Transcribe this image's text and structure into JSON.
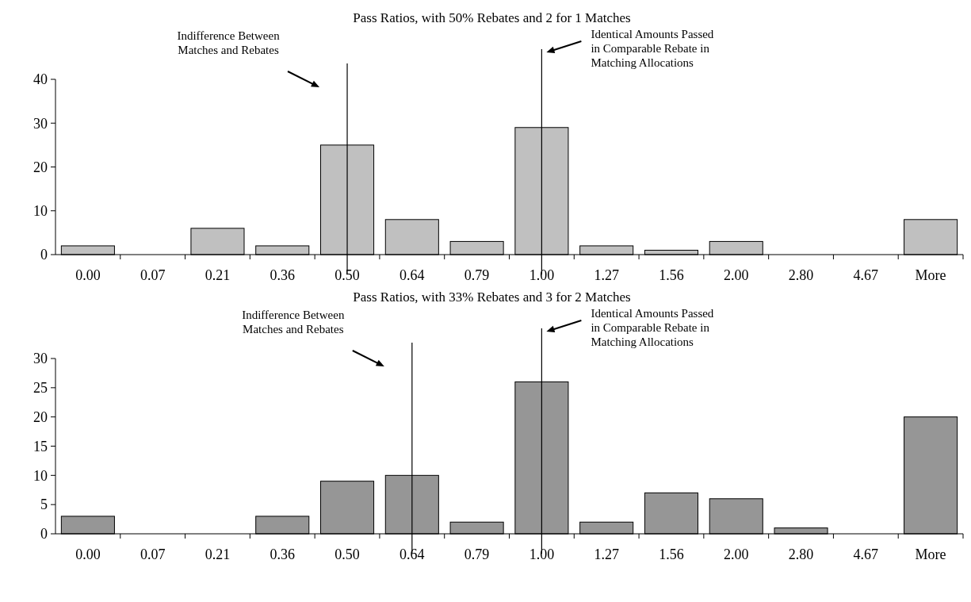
{
  "chart_data": [
    {
      "type": "bar",
      "title": "Pass Ratios, with 50% Rebates and 2 for 1 Matches",
      "categories": [
        "0.00",
        "0.07",
        "0.21",
        "0.36",
        "0.50",
        "0.64",
        "0.79",
        "1.00",
        "1.27",
        "1.56",
        "2.00",
        "2.80",
        "4.67",
        "More"
      ],
      "values": [
        2,
        0,
        6,
        2,
        25,
        8,
        3,
        29,
        2,
        1,
        3,
        0,
        0,
        8
      ],
      "color": "#c0c0c0",
      "ylim": [
        0,
        40
      ],
      "yticks": [
        0,
        10,
        20,
        30,
        40
      ],
      "ref_lines": [
        {
          "axis": "x",
          "value": "0.50",
          "color": "#000000"
        },
        {
          "axis": "x",
          "value": "1.00",
          "color": "#000000"
        }
      ],
      "annotations": [
        "Indifference Between\nMatches and Rebates",
        "Identical Amounts Passed\nin Comparable Rebate in\nMatching Allocations"
      ]
    },
    {
      "type": "bar",
      "title": "Pass Ratios, with 33% Rebates and 3 for 2 Matches",
      "categories": [
        "0.00",
        "0.07",
        "0.21",
        "0.36",
        "0.50",
        "0.64",
        "0.79",
        "1.00",
        "1.27",
        "1.56",
        "2.00",
        "2.80",
        "4.67",
        "More"
      ],
      "values": [
        3,
        0,
        0,
        3,
        9,
        10,
        2,
        26,
        2,
        7,
        6,
        1,
        0,
        20
      ],
      "color": "#969696",
      "ylim": [
        0,
        30
      ],
      "yticks": [
        0,
        5,
        10,
        15,
        20,
        25,
        30
      ],
      "ref_lines": [
        {
          "axis": "x",
          "value": "0.64",
          "color": "#000000"
        },
        {
          "axis": "x",
          "value": "1.00",
          "color": "#000000"
        }
      ],
      "annotations": [
        "Indifference Between\nMatches and Rebates",
        "Identical Amounts Passed\nin Comparable Rebate in\nMatching Allocations"
      ]
    }
  ]
}
